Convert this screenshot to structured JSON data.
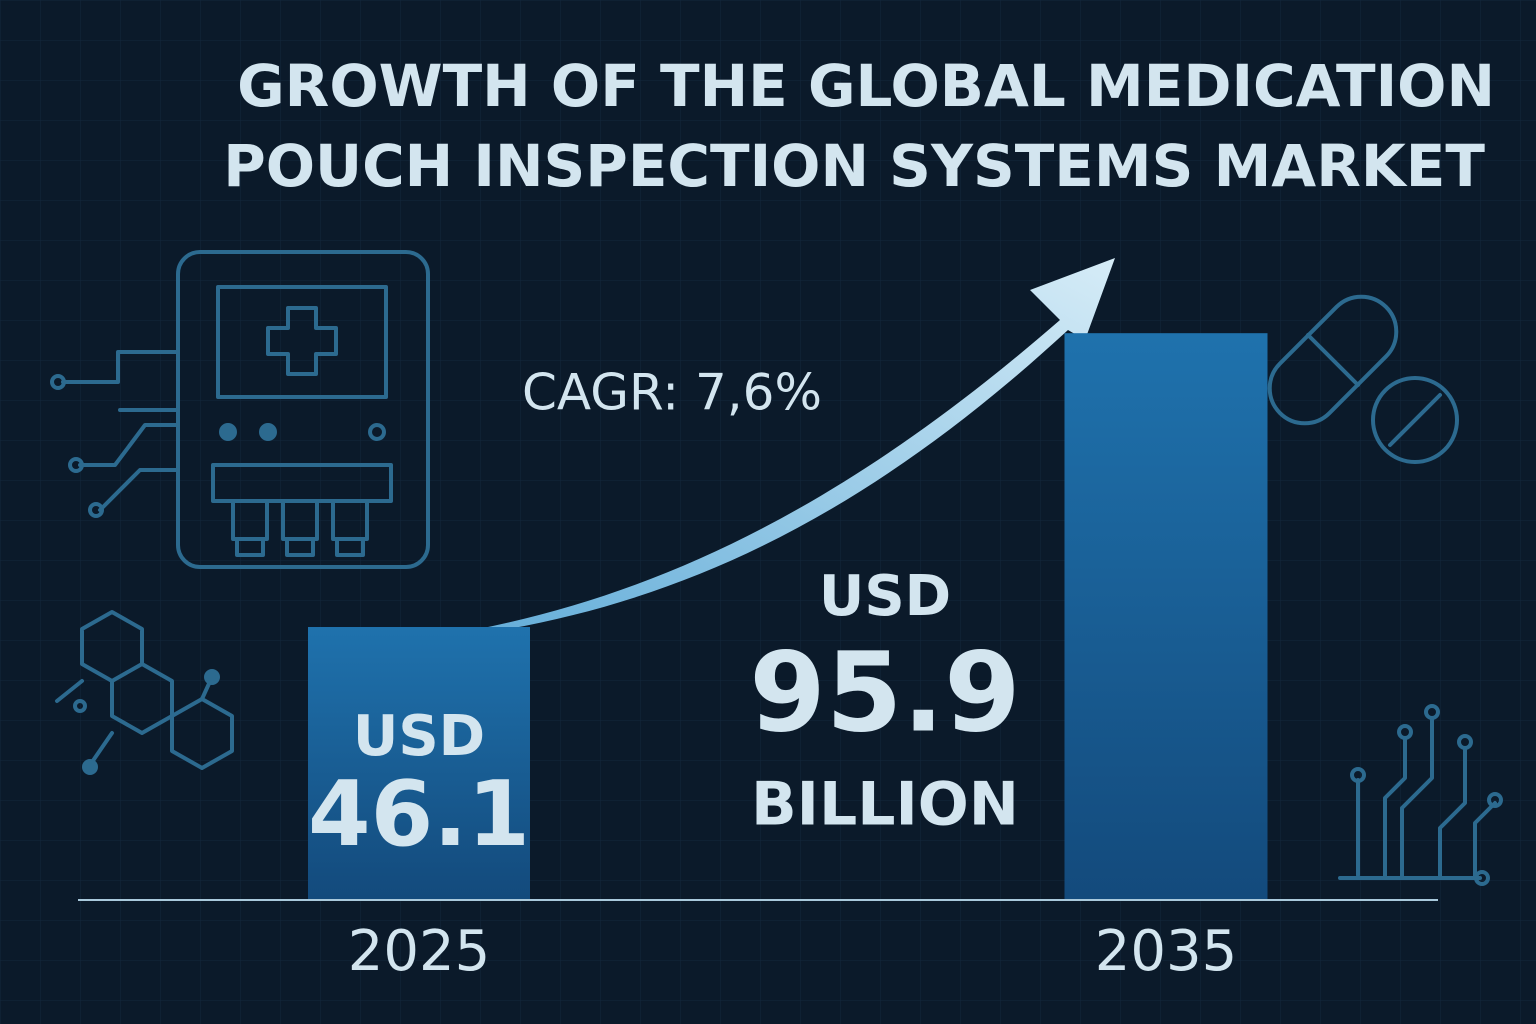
{
  "chart_data": {
    "type": "bar",
    "title": [
      "GROWTH OF THE GLOBAL MEDICATION",
      "POUCH INSPECTION SYSTEMS MARKET"
    ],
    "annotation": "CAGR: 7,6%",
    "categories": [
      "2025",
      "2035"
    ],
    "values": [
      46.1,
      95.9
    ],
    "value_prefix": "USD",
    "value_suffix": "BILLION",
    "color": "#1a5f96"
  }
}
